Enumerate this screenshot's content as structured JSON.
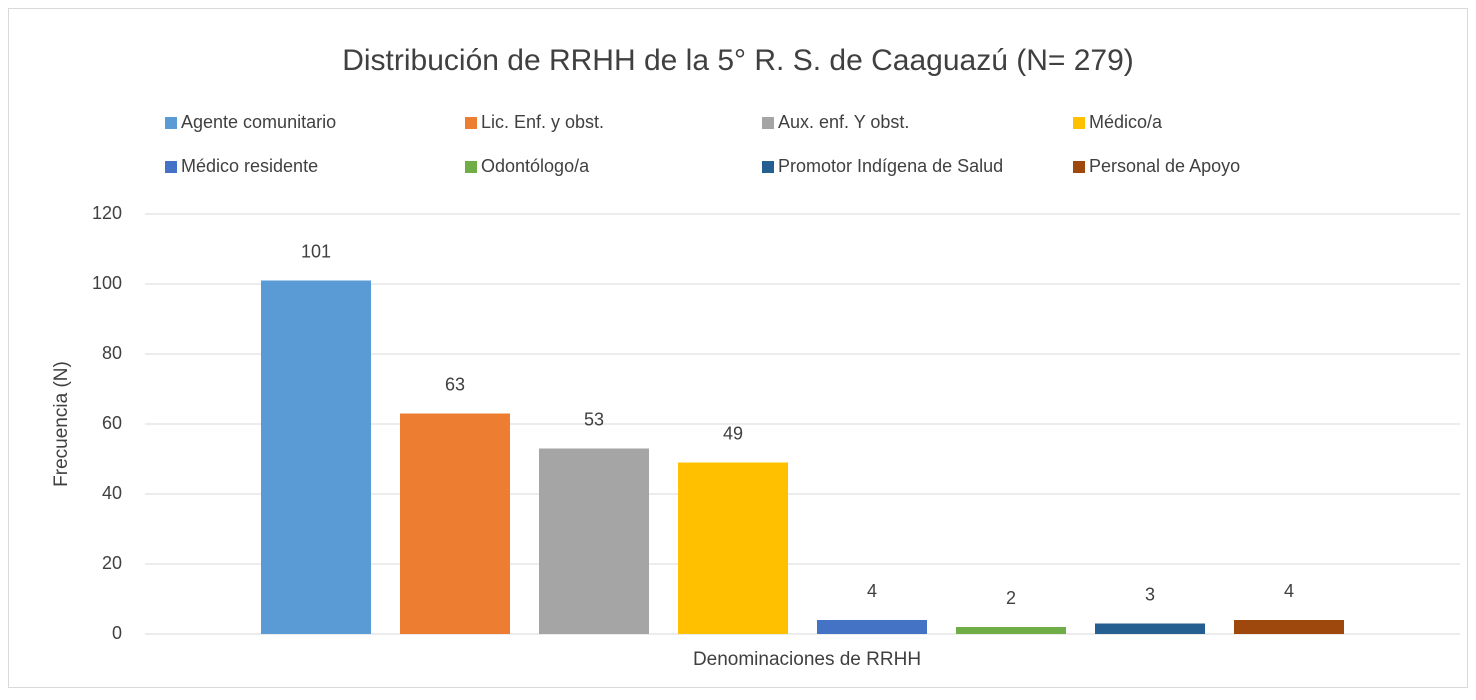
{
  "chart_data": {
    "type": "bar",
    "title": "Distribución de RRHH de la 5° R. S. de Caaguazú (N= 279)",
    "x_label": "Denominaciones de RRHH",
    "y_label": "Frecuencia (N)",
    "categories": [
      null
    ],
    "series": [
      {
        "name": "Agente comunitario",
        "color": "#5b9bd5",
        "values": [
          101
        ]
      },
      {
        "name": "Lic. Enf. y obst.",
        "color": "#ed7d31",
        "values": [
          63
        ]
      },
      {
        "name": "Aux. enf. Y obst.",
        "color": "#a5a5a5",
        "values": [
          53
        ]
      },
      {
        "name": "Médico/a",
        "color": "#ffc000",
        "values": [
          49
        ]
      },
      {
        "name": "Médico residente",
        "color": "#4472c4",
        "values": [
          4
        ]
      },
      {
        "name": "Odontólogo/a",
        "color": "#70ad47",
        "values": [
          2
        ]
      },
      {
        "name": "Promotor Indígena de Salud",
        "color": "#255e91",
        "values": [
          3
        ]
      },
      {
        "name": "Personal de Apoyo",
        "color": "#9e480e",
        "values": [
          4
        ]
      }
    ],
    "ylim": [
      0,
      120
    ],
    "yticks": [
      0,
      20,
      40,
      60,
      80,
      100,
      120
    ],
    "grid": true,
    "legend": "top",
    "data_labels": true
  }
}
